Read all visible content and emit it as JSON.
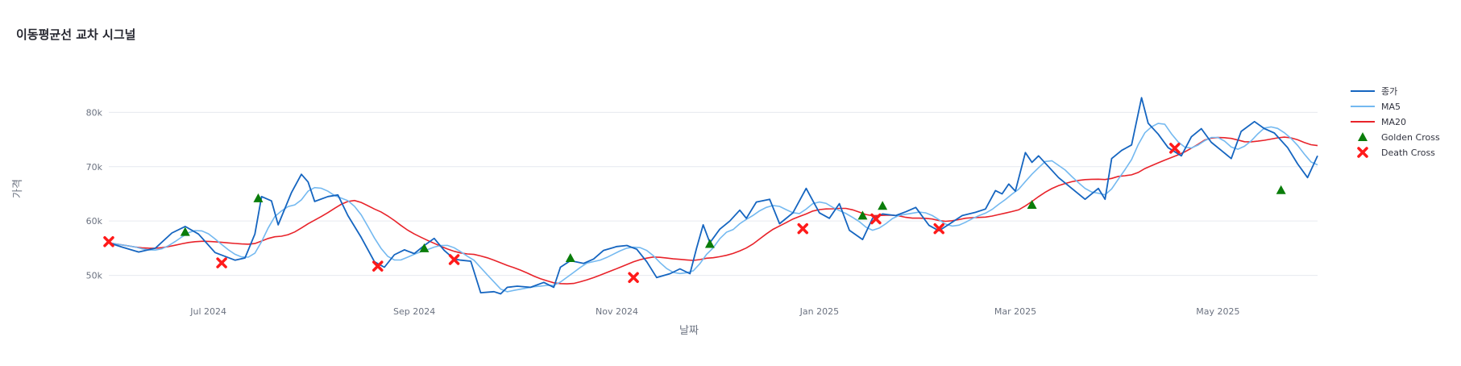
{
  "chart_data": {
    "type": "line",
    "title": "이동평균선 교차 시그널",
    "xlabel": "날짜",
    "ylabel": "가격",
    "x_range": [
      "2024-06-01",
      "2025-05-31"
    ],
    "ylim": [
      44000,
      90000
    ],
    "y_ticks": [
      {
        "value": 50000,
        "label": "50k"
      },
      {
        "value": 60000,
        "label": "60k"
      },
      {
        "value": 70000,
        "label": "70k"
      },
      {
        "value": 80000,
        "label": "80k"
      }
    ],
    "x_ticks": [
      {
        "date": "2024-07-01",
        "label": "Jul 2024"
      },
      {
        "date": "2024-09-01",
        "label": "Sep 2024"
      },
      {
        "date": "2024-11-01",
        "label": "Nov 2024"
      },
      {
        "date": "2025-01-01",
        "label": "Jan 2025"
      },
      {
        "date": "2025-03-01",
        "label": "Mar 2025"
      },
      {
        "date": "2025-05-01",
        "label": "May 2025"
      }
    ],
    "grid": true,
    "legend_position": "right",
    "series": [
      {
        "name": "종가",
        "kind": "line",
        "color": "#1565c0",
        "points": [
          [
            "2024-06-01",
            56000
          ],
          [
            "2024-06-05",
            55200
          ],
          [
            "2024-06-10",
            54300
          ],
          [
            "2024-06-15",
            55000
          ],
          [
            "2024-06-20",
            57800
          ],
          [
            "2024-06-24",
            59000
          ],
          [
            "2024-06-28",
            57600
          ],
          [
            "2024-07-03",
            54200
          ],
          [
            "2024-07-09",
            52800
          ],
          [
            "2024-07-12",
            53200
          ],
          [
            "2024-07-15",
            57600
          ],
          [
            "2024-07-17",
            64500
          ],
          [
            "2024-07-20",
            63700
          ],
          [
            "2024-07-22",
            59300
          ],
          [
            "2024-07-26",
            65200
          ],
          [
            "2024-07-29",
            68600
          ],
          [
            "2024-07-31",
            67200
          ],
          [
            "2024-08-02",
            63600
          ],
          [
            "2024-08-06",
            64500
          ],
          [
            "2024-08-09",
            64800
          ],
          [
            "2024-08-12",
            61000
          ],
          [
            "2024-08-16",
            57000
          ],
          [
            "2024-08-20",
            52500
          ],
          [
            "2024-08-23",
            51500
          ],
          [
            "2024-08-26",
            53800
          ],
          [
            "2024-08-29",
            54700
          ],
          [
            "2024-09-01",
            54000
          ],
          [
            "2024-09-04",
            55500
          ],
          [
            "2024-09-07",
            56800
          ],
          [
            "2024-09-10",
            54600
          ],
          [
            "2024-09-13",
            53000
          ],
          [
            "2024-09-15",
            52800
          ],
          [
            "2024-09-18",
            52600
          ],
          [
            "2024-09-21",
            46800
          ],
          [
            "2024-09-25",
            47000
          ],
          [
            "2024-09-27",
            46600
          ],
          [
            "2024-09-29",
            47800
          ],
          [
            "2024-10-02",
            48000
          ],
          [
            "2024-10-06",
            47800
          ],
          [
            "2024-10-10",
            48700
          ],
          [
            "2024-10-13",
            47800
          ],
          [
            "2024-10-15",
            51500
          ],
          [
            "2024-10-18",
            52700
          ],
          [
            "2024-10-22",
            52200
          ],
          [
            "2024-10-25",
            53000
          ],
          [
            "2024-10-28",
            54600
          ],
          [
            "2024-11-01",
            55300
          ],
          [
            "2024-11-04",
            55500
          ],
          [
            "2024-11-07",
            54800
          ],
          [
            "2024-11-10",
            52500
          ],
          [
            "2024-11-13",
            49600
          ],
          [
            "2024-11-17",
            50300
          ],
          [
            "2024-11-20",
            51200
          ],
          [
            "2024-11-23",
            50300
          ],
          [
            "2024-11-25",
            55000
          ],
          [
            "2024-11-27",
            59300
          ],
          [
            "2024-11-29",
            56000
          ],
          [
            "2024-12-02",
            58500
          ],
          [
            "2024-12-05",
            60000
          ],
          [
            "2024-12-08",
            62000
          ],
          [
            "2024-12-10",
            60500
          ],
          [
            "2024-12-13",
            63500
          ],
          [
            "2024-12-17",
            64000
          ],
          [
            "2024-12-20",
            59500
          ],
          [
            "2024-12-24",
            61500
          ],
          [
            "2024-12-28",
            66000
          ],
          [
            "2025-01-01",
            61500
          ],
          [
            "2025-01-04",
            60500
          ],
          [
            "2025-01-07",
            63200
          ],
          [
            "2025-01-10",
            58300
          ],
          [
            "2025-01-14",
            56600
          ],
          [
            "2025-01-17",
            60500
          ],
          [
            "2025-01-20",
            61300
          ],
          [
            "2025-01-24",
            61000
          ],
          [
            "2025-01-27",
            61700
          ],
          [
            "2025-01-30",
            62500
          ],
          [
            "2025-02-03",
            59200
          ],
          [
            "2025-02-06",
            58200
          ],
          [
            "2025-02-09",
            59400
          ],
          [
            "2025-02-13",
            61000
          ],
          [
            "2025-02-17",
            61600
          ],
          [
            "2025-02-20",
            62200
          ],
          [
            "2025-02-23",
            65600
          ],
          [
            "2025-02-25",
            65000
          ],
          [
            "2025-02-27",
            66800
          ],
          [
            "2025-03-01",
            65500
          ],
          [
            "2025-03-04",
            72600
          ],
          [
            "2025-03-06",
            70800
          ],
          [
            "2025-03-08",
            72000
          ],
          [
            "2025-03-14",
            68000
          ],
          [
            "2025-03-22",
            64000
          ],
          [
            "2025-03-26",
            66000
          ],
          [
            "2025-03-28",
            64000
          ],
          [
            "2025-03-30",
            71500
          ],
          [
            "2025-04-02",
            73000
          ],
          [
            "2025-04-05",
            74000
          ],
          [
            "2025-04-08",
            82700
          ],
          [
            "2025-04-10",
            78000
          ],
          [
            "2025-04-13",
            76000
          ],
          [
            "2025-04-16",
            73500
          ],
          [
            "2025-04-20",
            72000
          ],
          [
            "2025-04-23",
            75500
          ],
          [
            "2025-04-26",
            77000
          ],
          [
            "2025-04-29",
            74500
          ],
          [
            "2025-05-02",
            73000
          ],
          [
            "2025-05-05",
            71500
          ],
          [
            "2025-05-08",
            76500
          ],
          [
            "2025-05-12",
            78300
          ],
          [
            "2025-05-15",
            77000
          ],
          [
            "2025-05-18",
            76200
          ],
          [
            "2025-05-22",
            73500
          ],
          [
            "2025-05-25",
            70500
          ],
          [
            "2025-05-28",
            68000
          ],
          [
            "2025-05-31",
            72000
          ]
        ]
      },
      {
        "name": "MA5",
        "kind": "line",
        "color": "#74b9f0",
        "points": []
      },
      {
        "name": "MA20",
        "kind": "line",
        "color": "#e8232a",
        "points": []
      },
      {
        "name": "Golden Cross",
        "kind": "marker",
        "symbol": "triangle-up",
        "color": "#0a7d0a",
        "points": [
          [
            "2024-06-24",
            58000
          ],
          [
            "2024-07-16",
            64200
          ],
          [
            "2024-09-04",
            55000
          ],
          [
            "2024-10-18",
            53200
          ],
          [
            "2024-11-29",
            55800
          ],
          [
            "2025-01-14",
            61000
          ],
          [
            "2025-01-20",
            62800
          ],
          [
            "2025-03-06",
            63000
          ],
          [
            "2025-05-20",
            65700
          ]
        ]
      },
      {
        "name": "Death Cross",
        "kind": "marker",
        "symbol": "x",
        "color": "#ff1a1a",
        "points": [
          [
            "2024-06-01",
            56200
          ],
          [
            "2024-07-05",
            52300
          ],
          [
            "2024-08-21",
            51700
          ],
          [
            "2024-09-13",
            52900
          ],
          [
            "2024-11-06",
            49600
          ],
          [
            "2024-12-27",
            58600
          ],
          [
            "2025-01-18",
            60400
          ],
          [
            "2025-02-06",
            58600
          ],
          [
            "2025-04-18",
            73400
          ]
        ]
      }
    ]
  }
}
